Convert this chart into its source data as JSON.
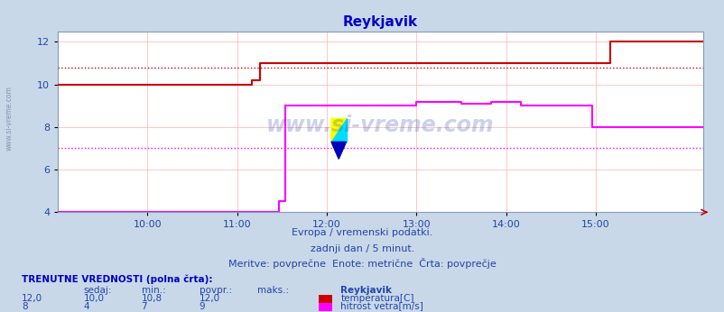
{
  "title": "Reykjavik",
  "title_color": "#0000cc",
  "bg_color": "#c8d8e8",
  "plot_bg_color": "#ffffff",
  "grid_color": "#ffb0b0",
  "xlabel_texts": [
    "10:00",
    "11:00",
    "12:00",
    "13:00",
    "14:00",
    "15:00"
  ],
  "xlim_min": 0,
  "xlim_max": 432,
  "ylim_min": 4,
  "ylim_max": 12.5,
  "yticks": [
    4,
    6,
    8,
    10,
    12
  ],
  "xtick_positions": [
    60,
    120,
    180,
    240,
    300,
    360
  ],
  "temp_color": "#cc0000",
  "wind_color": "#ff00ff",
  "avg_temp_value": 10.8,
  "avg_wind_value": 7.0,
  "temp_x": [
    0,
    130,
    130,
    135,
    135,
    370,
    370,
    432
  ],
  "temp_y": [
    10.0,
    10.0,
    10.2,
    10.2,
    11.0,
    11.0,
    12.0,
    12.0
  ],
  "wind_x": [
    0,
    148,
    148,
    152,
    152,
    240,
    240,
    270,
    270,
    290,
    290,
    310,
    310,
    358,
    358,
    390,
    390,
    432
  ],
  "wind_y": [
    4.0,
    4.0,
    4.5,
    4.5,
    9.0,
    9.0,
    9.2,
    9.2,
    9.1,
    9.1,
    9.2,
    9.2,
    9.0,
    9.0,
    8.0,
    8.0,
    8.0,
    8.0
  ],
  "watermark": "www.si-vreme.com",
  "sub1": "Evropa / vremenski podatki.",
  "sub2": "zadnji dan / 5 minut.",
  "sub3": "Meritve: povprečne  Enote: metrične  Črta: povprečje",
  "footer_title": "TRENUTNE VREDNOSTI (polna črta):",
  "footer_col_headers": [
    "sedaj:",
    "min.:",
    "povpr.:",
    "maks.:"
  ],
  "footer_temp_vals": [
    "12,0",
    "10,0",
    "10,8",
    "12,0"
  ],
  "footer_wind_vals": [
    "8",
    "4",
    "7",
    "9"
  ],
  "legend_station": "Reykjavik",
  "legend_temp": "temperatura[C]",
  "legend_wind": "hitrost vetra[m/s]",
  "left_watermark": "www.si-vreme.com"
}
